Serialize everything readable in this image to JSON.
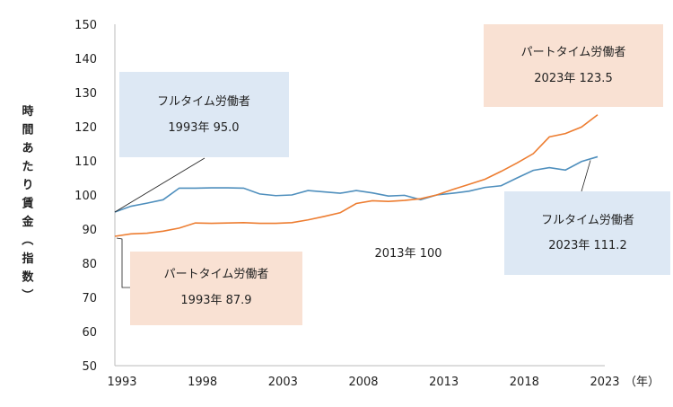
{
  "chart_data": {
    "type": "line",
    "ylabel": "時間あたり賃金（指数）",
    "x_unit_label": "（年）",
    "ylim": [
      50,
      150
    ],
    "yticks": [
      50,
      60,
      70,
      80,
      90,
      100,
      110,
      120,
      130,
      140,
      150
    ],
    "xlim": [
      1993,
      2023
    ],
    "xticks": [
      1993,
      1998,
      2003,
      2008,
      2013,
      2018,
      2023
    ],
    "grid": false,
    "colors": {
      "fulltime": "#4f8fbd",
      "parttime": "#ed7d31",
      "fulltime_box": "#dde8f4",
      "parttime_box": "#f9e1d3",
      "axis": "#bbbbbb"
    },
    "x": [
      1993,
      1994,
      1995,
      1996,
      1997,
      1998,
      1999,
      2000,
      2001,
      2002,
      2003,
      2004,
      2005,
      2006,
      2007,
      2008,
      2009,
      2010,
      2011,
      2012,
      2013,
      2014,
      2015,
      2016,
      2017,
      2018,
      2019,
      2020,
      2021,
      2022,
      2023
    ],
    "series": [
      {
        "key": "fulltime",
        "values": [
          95.0,
          96.7,
          97.6,
          98.6,
          102.0,
          102.0,
          102.1,
          102.1,
          102.0,
          100.3,
          99.8,
          100.0,
          101.3,
          100.9,
          100.5,
          101.3,
          100.6,
          99.7,
          99.9,
          98.6,
          100.0,
          100.5,
          101.1,
          102.2,
          102.7,
          105.0,
          107.2,
          108.0,
          107.3,
          109.8,
          111.2
        ]
      },
      {
        "key": "parttime",
        "values": [
          87.9,
          88.6,
          88.8,
          89.4,
          90.3,
          91.8,
          91.7,
          91.8,
          91.9,
          91.7,
          91.7,
          91.9,
          92.7,
          93.7,
          94.8,
          97.5,
          98.3,
          98.1,
          98.4,
          98.9,
          100.0,
          101.6,
          103.1,
          104.6,
          106.9,
          109.4,
          112.1,
          117.0,
          118.0,
          119.9,
          123.5
        ]
      }
    ],
    "annotations": {
      "fulltime_1993": {
        "title": "フルタイム労働者",
        "value": "1993年 95.0"
      },
      "parttime_1993": {
        "title": "パートタイム労働者",
        "value": "1993年 87.9"
      },
      "parttime_2023": {
        "title": "パートタイム労働者",
        "value": "2023年 123.5"
      },
      "fulltime_2023": {
        "title": "フルタイム労働者",
        "value": "2023年 111.2"
      },
      "base_2013": {
        "value": "2013年 100"
      }
    }
  }
}
